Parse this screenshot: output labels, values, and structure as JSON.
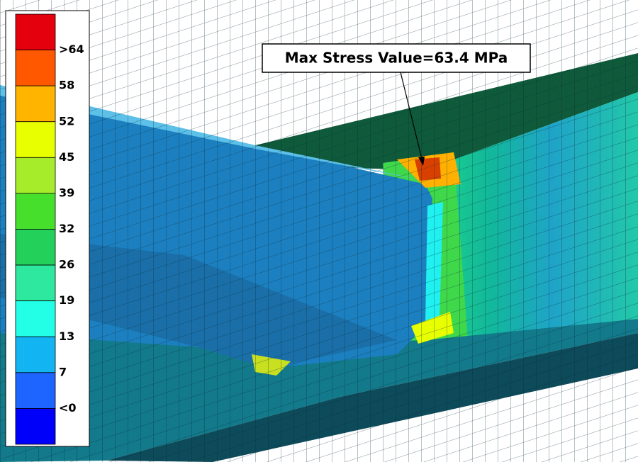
{
  "legend": {
    "colors": [
      "#e4000c",
      "#ff5800",
      "#ffb400",
      "#e8ff00",
      "#a6ec2a",
      "#46e02c",
      "#22d05a",
      "#2ee8a0",
      "#22ffe6",
      "#12b4f2",
      "#1e64ff",
      "#0000fa"
    ],
    "labels": [
      ">64",
      "58",
      "52",
      "45",
      "39",
      "32",
      "26",
      "19",
      "13",
      "7",
      "<0"
    ]
  },
  "annotation": {
    "text": "Max Stress Value=63.4 MPa"
  }
}
